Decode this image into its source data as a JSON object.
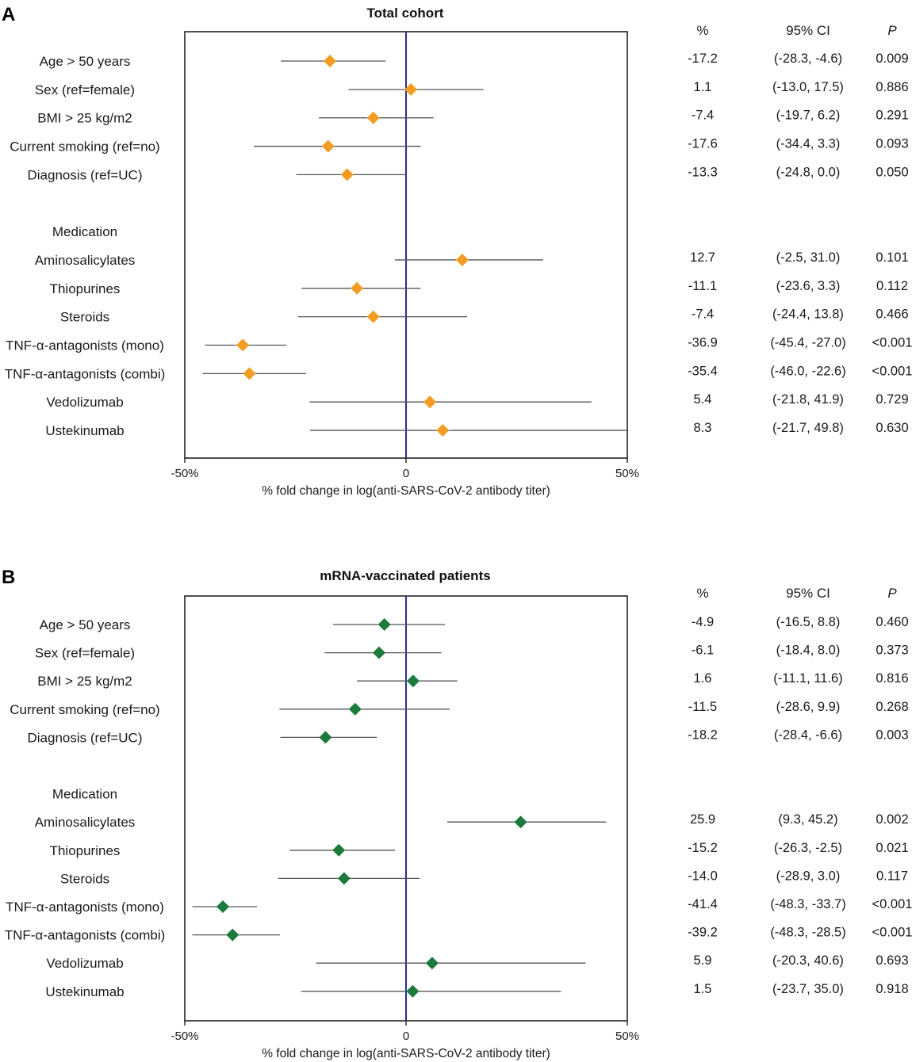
{
  "chart_data": [
    {
      "type": "forest",
      "panel": "A",
      "title": "Total cohort",
      "xlabel": "% fold change in log(anti-SARS-CoV-2 antibody titer)",
      "xlim": [
        -50,
        50
      ],
      "xticks": [
        "-50%",
        "0",
        "50%"
      ],
      "marker_color": "#f39c24",
      "columns": {
        "pct": "%",
        "ci": "95% CI",
        "p": "P"
      },
      "rows": [
        {
          "label": "Age > 50 years",
          "value": -17.2,
          "lo": -28.3,
          "hi": -4.6,
          "pct": "-17.2",
          "ci": "(-28.3, -4.6)",
          "p": "0.009"
        },
        {
          "label": "Sex (ref=female)",
          "value": 1.1,
          "lo": -13.0,
          "hi": 17.5,
          "pct": "1.1",
          "ci": "(-13.0, 17.5)",
          "p": "0.886"
        },
        {
          "label": "BMI > 25 kg/m2",
          "value": -7.4,
          "lo": -19.7,
          "hi": 6.2,
          "pct": "-7.4",
          "ci": "(-19.7, 6.2)",
          "p": "0.291"
        },
        {
          "label": "Current smoking (ref=no)",
          "value": -17.6,
          "lo": -34.4,
          "hi": 3.3,
          "pct": "-17.6",
          "ci": "(-34.4, 3.3)",
          "p": "0.093"
        },
        {
          "label": "Diagnosis (ref=UC)",
          "value": -13.3,
          "lo": -24.8,
          "hi": 0.0,
          "pct": "-13.3",
          "ci": "(-24.8, 0.0)",
          "p": "0.050"
        },
        {
          "label": "Medication",
          "header": true
        },
        {
          "label": "Aminosalicylates",
          "value": 12.7,
          "lo": -2.5,
          "hi": 31.0,
          "pct": "12.7",
          "ci": "(-2.5, 31.0)",
          "p": "0.101"
        },
        {
          "label": "Thiopurines",
          "value": -11.1,
          "lo": -23.6,
          "hi": 3.3,
          "pct": "-11.1",
          "ci": "(-23.6, 3.3)",
          "p": "0.112"
        },
        {
          "label": "Steroids",
          "value": -7.4,
          "lo": -24.4,
          "hi": 13.8,
          "pct": "-7.4",
          "ci": "(-24.4, 13.8)",
          "p": "0.466"
        },
        {
          "label": "TNF-α-antagonists (mono)",
          "value": -36.9,
          "lo": -45.4,
          "hi": -27.0,
          "pct": "-36.9",
          "ci": "(-45.4, -27.0)",
          "p": "<0.001"
        },
        {
          "label": "TNF-α-antagonists (combi)",
          "value": -35.4,
          "lo": -46.0,
          "hi": -22.6,
          "pct": "-35.4",
          "ci": "(-46.0, -22.6)",
          "p": "<0.001"
        },
        {
          "label": "Vedolizumab",
          "value": 5.4,
          "lo": -21.8,
          "hi": 41.9,
          "pct": "5.4",
          "ci": "(-21.8, 41.9)",
          "p": "0.729"
        },
        {
          "label": "Ustekinumab",
          "value": 8.3,
          "lo": -21.7,
          "hi": 49.8,
          "pct": "8.3",
          "ci": "(-21.7, 49.8)",
          "p": "0.630"
        }
      ]
    },
    {
      "type": "forest",
      "panel": "B",
      "title": "mRNA-vaccinated patients",
      "xlabel": "% fold change in log(anti-SARS-CoV-2 antibody titer)",
      "xlim": [
        -50,
        50
      ],
      "xticks": [
        "-50%",
        "0",
        "50%"
      ],
      "marker_color": "#1b7a3c",
      "columns": {
        "pct": "%",
        "ci": "95% CI",
        "p": "P"
      },
      "rows": [
        {
          "label": "Age > 50 years",
          "value": -4.9,
          "lo": -16.5,
          "hi": 8.8,
          "pct": "-4.9",
          "ci": "(-16.5, 8.8)",
          "p": "0.460"
        },
        {
          "label": "Sex (ref=female)",
          "value": -6.1,
          "lo": -18.4,
          "hi": 8.0,
          "pct": "-6.1",
          "ci": "(-18.4, 8.0)",
          "p": "0.373"
        },
        {
          "label": "BMI > 25 kg/m2",
          "value": 1.6,
          "lo": -11.1,
          "hi": 11.6,
          "pct": "1.6",
          "ci": "(-11.1, 11.6)",
          "p": "0.816"
        },
        {
          "label": "Current smoking (ref=no)",
          "value": -11.5,
          "lo": -28.6,
          "hi": 9.9,
          "pct": "-11.5",
          "ci": "(-28.6, 9.9)",
          "p": "0.268"
        },
        {
          "label": "Diagnosis (ref=UC)",
          "value": -18.2,
          "lo": -28.4,
          "hi": -6.6,
          "pct": "-18.2",
          "ci": "(-28.4, -6.6)",
          "p": "0.003"
        },
        {
          "label": "Medication",
          "header": true
        },
        {
          "label": "Aminosalicylates",
          "value": 25.9,
          "lo": 9.3,
          "hi": 45.2,
          "pct": "25.9",
          "ci": "(9.3, 45.2)",
          "p": "0.002"
        },
        {
          "label": "Thiopurines",
          "value": -15.2,
          "lo": -26.3,
          "hi": -2.5,
          "pct": "-15.2",
          "ci": "(-26.3, -2.5)",
          "p": "0.021"
        },
        {
          "label": "Steroids",
          "value": -14.0,
          "lo": -28.9,
          "hi": 3.0,
          "pct": "-14.0",
          "ci": "(-28.9, 3.0)",
          "p": "0.117"
        },
        {
          "label": "TNF-α-antagonists (mono)",
          "value": -41.4,
          "lo": -48.3,
          "hi": -33.7,
          "pct": "-41.4",
          "ci": "(-48.3, -33.7)",
          "p": "<0.001"
        },
        {
          "label": "TNF-α-antagonists (combi)",
          "value": -39.2,
          "lo": -48.3,
          "hi": -28.5,
          "pct": "-39.2",
          "ci": "(-48.3, -28.5)",
          "p": "<0.001"
        },
        {
          "label": "Vedolizumab",
          "value": 5.9,
          "lo": -20.3,
          "hi": 40.6,
          "pct": "5.9",
          "ci": "(-20.3, 40.6)",
          "p": "0.693"
        },
        {
          "label": "Ustekinumab",
          "value": 1.5,
          "lo": -23.7,
          "hi": 35.0,
          "pct": "1.5",
          "ci": "(-23.7, 35.0)",
          "p": "0.918"
        }
      ]
    }
  ]
}
